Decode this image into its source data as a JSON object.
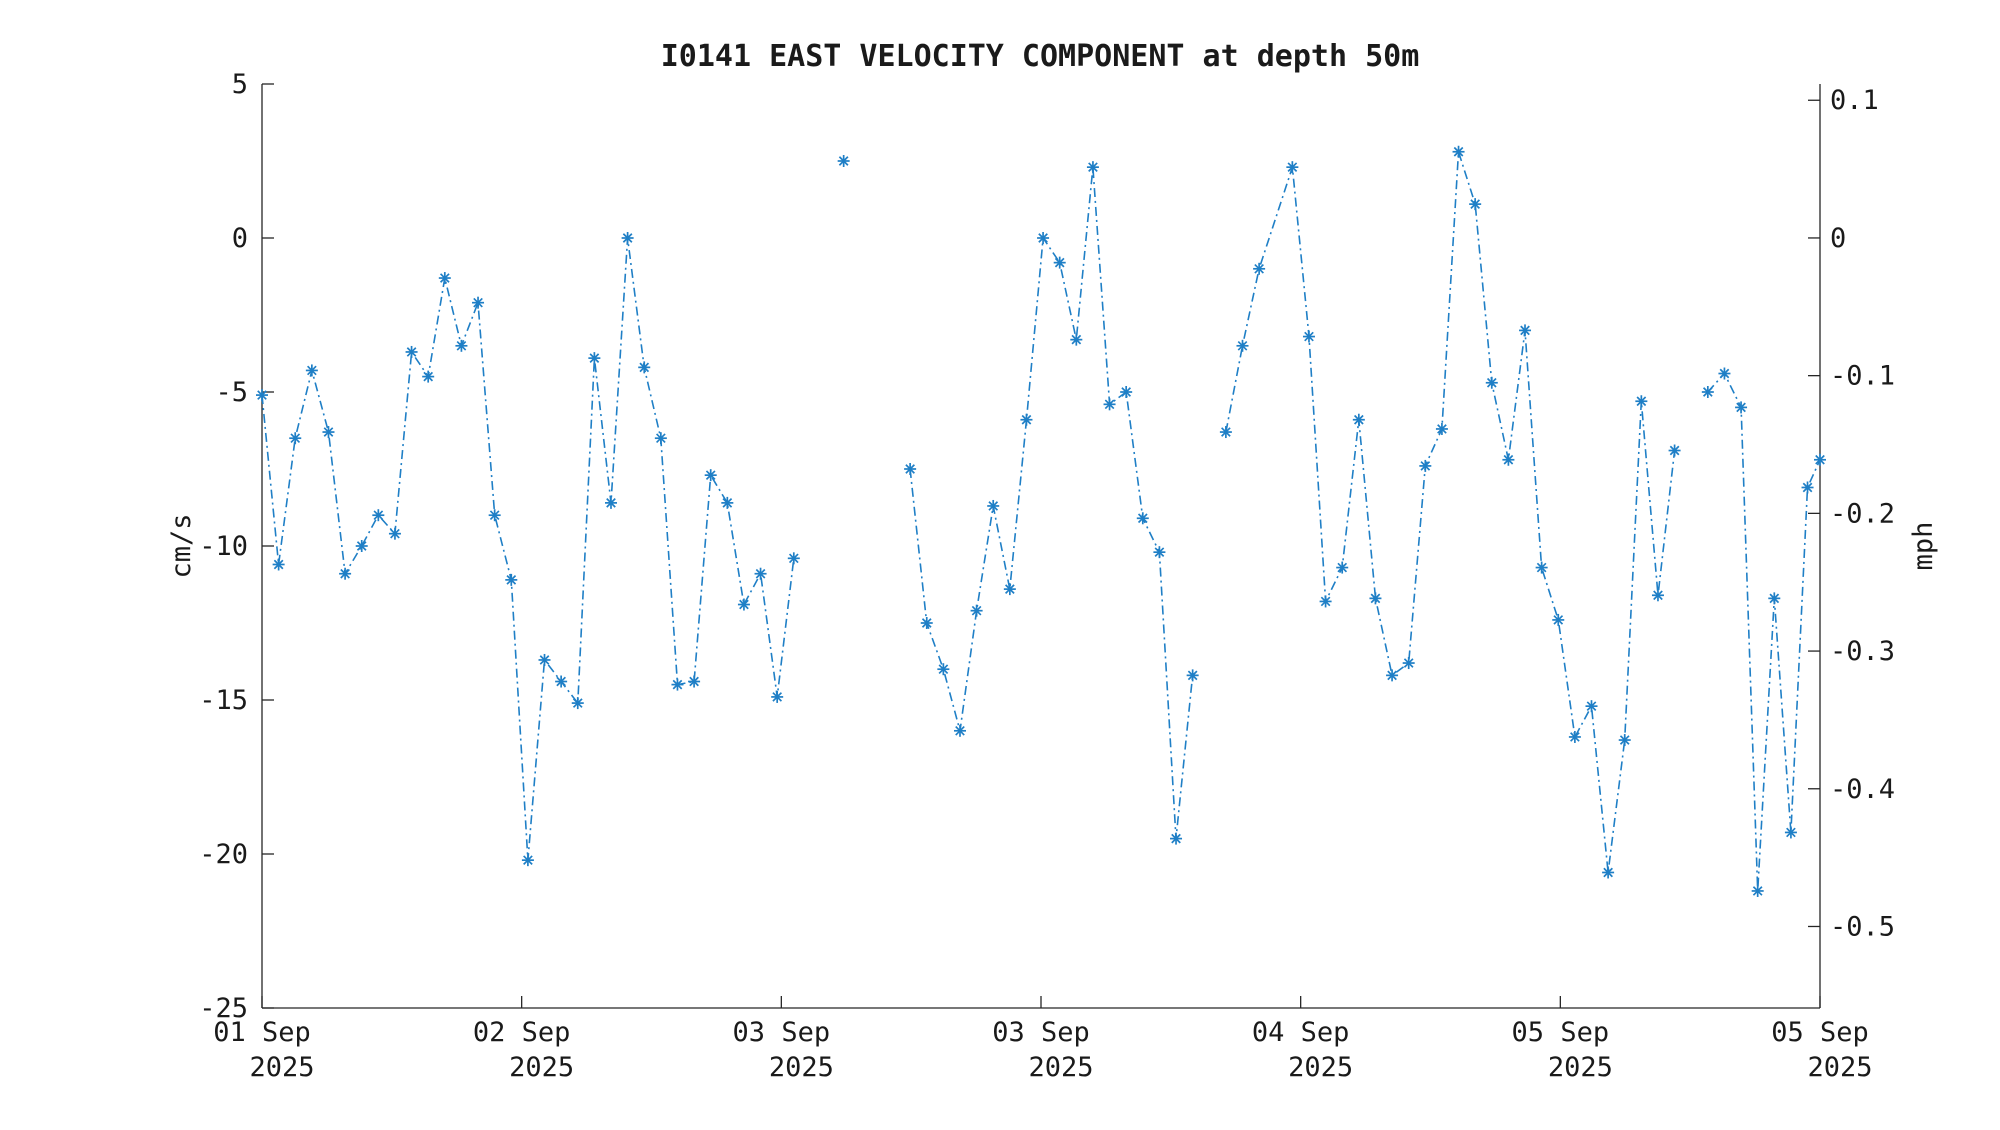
{
  "chart_data": {
    "type": "line",
    "title": "I0141 EAST VELOCITY COMPONENT at depth 50m",
    "ylabel": "cm/s",
    "y2label": "mph",
    "ylim": [
      -25,
      5
    ],
    "y2lim": [
      -0.5592,
      0.1118
    ],
    "yticks": [
      5,
      0,
      -5,
      -10,
      -15,
      -20,
      -25
    ],
    "y2ticks": [
      0.1,
      0,
      -0.1,
      -0.2,
      -0.3,
      -0.4,
      -0.5
    ],
    "y2tick_labels": [
      "0.1",
      "0",
      "-0.1",
      "-0.2",
      "-0.3",
      "-0.4",
      "-0.5"
    ],
    "xlim": [
      0,
      6
    ],
    "xticks": [
      0,
      1,
      2,
      3,
      4,
      5,
      6
    ],
    "xtick_labels": [
      [
        "01 Sep",
        "2025"
      ],
      [
        "02 Sep",
        "2025"
      ],
      [
        "03 Sep",
        "2025"
      ],
      [
        "03 Sep",
        "2025"
      ],
      [
        "04 Sep",
        "2025"
      ],
      [
        "05 Sep",
        "2025"
      ],
      [
        "05 Sep",
        "2025"
      ]
    ],
    "grid": false,
    "line_style": "dash-dot",
    "marker": "asterisk",
    "colors": {
      "series": "#1f7fc6",
      "axis": "#262626",
      "text": "#1a1a1a"
    },
    "series": [
      {
        "x": [
          0.0,
          0.064,
          0.128,
          0.192,
          0.256,
          0.32,
          0.384,
          0.448,
          0.512,
          0.576,
          0.64,
          0.704,
          0.768,
          0.832,
          0.896,
          0.96,
          1.024,
          1.088,
          1.152,
          1.216,
          1.28,
          1.344,
          1.408,
          1.472,
          1.536,
          1.6,
          1.664,
          1.728,
          1.792,
          1.856,
          1.92,
          1.984,
          2.048,
          null,
          2.24,
          null,
          2.496,
          2.56,
          2.624,
          2.688,
          2.752,
          2.816,
          2.88,
          2.944,
          3.008,
          3.072,
          3.136,
          3.2,
          3.264,
          3.328,
          3.392,
          3.456,
          3.52,
          3.584,
          null,
          3.712,
          3.776,
          3.84,
          3.968,
          4.032,
          4.096,
          4.16,
          4.224,
          4.288,
          4.352,
          4.416,
          4.48,
          4.544,
          4.608,
          4.672,
          4.736,
          4.8,
          4.864,
          4.928,
          4.992,
          5.056,
          5.12,
          5.184,
          5.248,
          5.312,
          5.376,
          5.44,
          null,
          5.568,
          5.632,
          5.696,
          5.76,
          5.824,
          5.888,
          5.952,
          6.0
        ],
        "y": [
          -5.1,
          -10.6,
          -6.5,
          -4.3,
          -6.3,
          -10.9,
          -10.0,
          -9.0,
          -9.6,
          -3.7,
          -4.5,
          -1.3,
          -3.5,
          -2.1,
          -9.0,
          -11.1,
          -20.2,
          -13.7,
          -14.4,
          -15.1,
          -3.9,
          -8.6,
          0.0,
          -4.2,
          -6.5,
          -14.5,
          -14.4,
          -7.7,
          -8.6,
          -11.9,
          -10.9,
          -14.9,
          -10.4,
          null,
          2.5,
          null,
          -7.5,
          -12.5,
          -14.0,
          -16.0,
          -12.1,
          -8.7,
          -11.4,
          -5.9,
          0.0,
          -0.8,
          -3.3,
          2.3,
          -5.4,
          -5.0,
          -9.1,
          -10.2,
          -19.5,
          -14.2,
          null,
          -6.3,
          -3.5,
          -1.0,
          2.3,
          -3.2,
          -11.8,
          -10.7,
          -5.9,
          -11.7,
          -14.2,
          -13.8,
          -7.4,
          -6.2,
          2.8,
          1.1,
          -4.7,
          -7.2,
          -3.0,
          -10.7,
          -12.4,
          -16.2,
          -15.2,
          -20.6,
          -16.3,
          -5.3,
          -11.6,
          -6.9,
          null,
          -5.0,
          -4.4,
          -5.5,
          -21.2,
          -11.7,
          -19.3,
          -8.1,
          -7.2
        ]
      }
    ]
  }
}
